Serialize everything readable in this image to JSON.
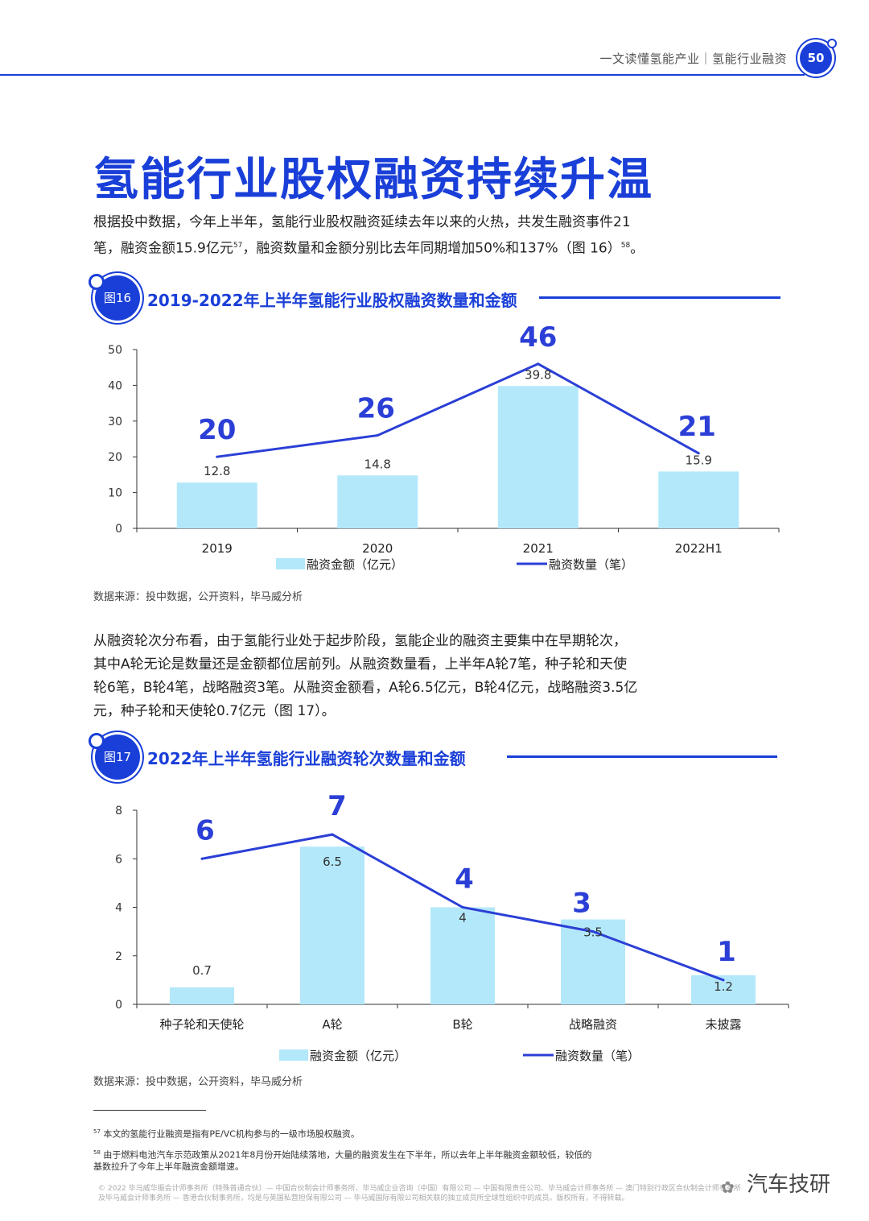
{
  "header": {
    "text": "一文读懂氢能产业｜氢能行业融资",
    "page_number": "50"
  },
  "title": "氢能行业股权融资持续升温",
  "intro": {
    "line1": "根据投中数据，今年上半年，氢能行业股权融资延续去年以来的火热，共发生融资事件21",
    "line2a": "笔，融资金额15.9亿元",
    "line2_sup": "57",
    "line2b": "，融资数量和金额分别比去年同期增加50%和137%（图 16）",
    "line2_sup2": "58",
    "line2c": "。"
  },
  "fig16": {
    "badge": "图16",
    "title": "2019-2022年上半年氢能行业股权融资数量和金额",
    "source": "数据来源：投中数据，公开资料，毕马威分析"
  },
  "para2": {
    "lines": [
      "从融资轮次分布看，由于氢能行业处于起步阶段，氢能企业的融资主要集中在早期轮次，",
      "其中A轮无论是数量还是金额都位居前列。从融资数量看，上半年A轮7笔，种子轮和天使",
      "轮6笔，B轮4笔，战略融资3笔。从融资金额看，A轮6.5亿元，B轮4亿元，战略融资3.5亿",
      "元，种子轮和天使轮0.7亿元（图 17）。"
    ]
  },
  "fig17": {
    "badge": "图17",
    "title": "2022年上半年氢能行业融资轮次数量和金额",
    "source": "数据来源：投中数据，公开资料，毕马威分析"
  },
  "chart_data": [
    {
      "type": "bar",
      "categories": [
        "2019",
        "2020",
        "2021",
        "2022H1"
      ],
      "series": [
        {
          "name": "融资金额（亿元）",
          "type": "bar",
          "values": [
            12.8,
            14.8,
            39.8,
            15.9
          ],
          "labels": [
            "12.8",
            "14.8",
            "39.8",
            "15.9"
          ]
        },
        {
          "name": "融资数量（笔）",
          "type": "line",
          "values": [
            20,
            26,
            46,
            21
          ],
          "labels": [
            "20",
            "26",
            "46",
            "21"
          ]
        }
      ],
      "yticks": [
        "0",
        "10",
        "20",
        "30",
        "40",
        "50"
      ],
      "ylim": [
        0,
        50
      ],
      "legend": "bottom",
      "colors": {
        "bar": "#b3e8fa",
        "line": "#2b3fd6"
      }
    },
    {
      "type": "bar",
      "categories": [
        "种子轮和天使轮",
        "A轮",
        "B轮",
        "战略融资",
        "未披露"
      ],
      "series": [
        {
          "name": "融资金额（亿元）",
          "type": "bar",
          "values": [
            0.7,
            6.5,
            4,
            3.5,
            1.2
          ],
          "labels": [
            "0.7",
            "6.5",
            "4",
            "3.5",
            "1.2"
          ]
        },
        {
          "name": "融资数量（笔）",
          "type": "line",
          "values": [
            6,
            7,
            4,
            3,
            1
          ],
          "labels": [
            "6",
            "7",
            "4",
            "3",
            "1"
          ]
        }
      ],
      "yticks": [
        "0",
        "2",
        "4",
        "6",
        "8"
      ],
      "ylim": [
        0,
        8
      ],
      "legend": "bottom",
      "colors": {
        "bar": "#b3e8fa",
        "line": "#2b3fd6"
      }
    }
  ],
  "footnotes": {
    "fn57_num": "57",
    "fn57": "本文的氢能行业融资是指有PE/VC机构参与的一级市场股权融资。",
    "fn58_num": "58",
    "fn58_line1": "由于燃料电池汽车示范政策从2021年8月份开始陆续落地，大量的融资发生在下半年，所以去年上半年融资金额较低，较低的",
    "fn58_line2": "基数拉升了今年上半年融资金额增速。"
  },
  "copyright": {
    "line1": "© 2022 毕马威华振会计师事务所（特殊普通合伙）— 中国合伙制会计师事务所、毕马威企业咨询（中国）有限公司 — 中国有限责任公司、毕马威会计师事务所 — 澳门特别行政区合伙制会计师事务所",
    "line2": "及毕马威会计师事务所 — 香港合伙制事务所，均是与英国私营担保有限公司 — 毕马威国际有限公司相关联的独立成员所全球性组织中的成员。版权所有，不得转载。"
  },
  "watermark": {
    "icon": "wechat-icon",
    "icon_glyph": "✿",
    "text": "汽车技研"
  }
}
